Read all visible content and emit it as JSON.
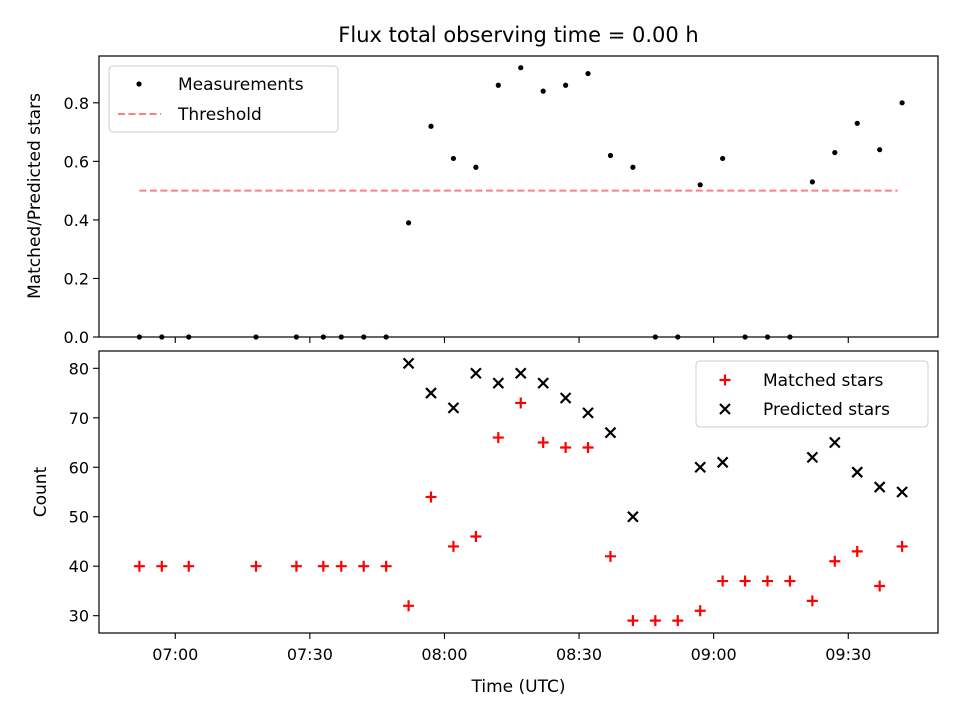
{
  "chart_data": [
    {
      "type": "scatter",
      "title": "Flux total observing time = 0.00 h",
      "xlabel": "",
      "ylabel": "Matched/Predicted stars",
      "ylim": [
        0,
        0.96
      ],
      "yticks": [
        0.0,
        0.2,
        0.4,
        0.6,
        0.8
      ],
      "ytick_labels": [
        "0.0",
        "0.2",
        "0.4",
        "0.6",
        "0.8"
      ],
      "legend": {
        "placement": "top-left",
        "entries": [
          "Measurements",
          "Threshold"
        ]
      },
      "series": [
        {
          "name": "Measurements",
          "kind": "points",
          "color": "#000000",
          "x": [
            "06:52",
            "06:57",
            "07:03",
            "07:18",
            "07:27",
            "07:33",
            "07:37",
            "07:42",
            "07:47",
            "07:52",
            "07:57",
            "08:02",
            "08:07",
            "08:12",
            "08:17",
            "08:22",
            "08:27",
            "08:32",
            "08:37",
            "08:42",
            "08:47",
            "08:52",
            "08:57",
            "09:02",
            "09:07",
            "09:12",
            "09:17",
            "09:22",
            "09:27",
            "09:32",
            "09:37",
            "09:42"
          ],
          "y": [
            0,
            0,
            0,
            0,
            0,
            0,
            0,
            0,
            0,
            0.39,
            0.72,
            0.61,
            0.58,
            0.86,
            0.92,
            0.84,
            0.86,
            0.9,
            0.62,
            0.58,
            0,
            0,
            0.52,
            0.61,
            0,
            0,
            0,
            0.53,
            0.63,
            0.73,
            0.64,
            0.8
          ]
        },
        {
          "name": "Threshold",
          "kind": "dashed-line",
          "color": "#ff7f7f",
          "x": [
            "06:52",
            "09:41"
          ],
          "y": [
            0.5,
            0.5
          ]
        }
      ]
    },
    {
      "type": "scatter",
      "title": "",
      "xlabel": "Time (UTC)",
      "ylabel": "Count",
      "ylim": [
        26.5,
        83.5
      ],
      "yticks": [
        30,
        40,
        50,
        60,
        70,
        80
      ],
      "ytick_labels": [
        "30",
        "40",
        "50",
        "60",
        "70",
        "80"
      ],
      "xlim": [
        "06:43",
        "09:50"
      ],
      "xticks": [
        "07:00",
        "07:30",
        "08:00",
        "08:30",
        "09:00",
        "09:30"
      ],
      "xtick_labels": [
        "07:00",
        "07:30",
        "08:00",
        "08:30",
        "09:00",
        "09:30"
      ],
      "legend": {
        "placement": "top-right",
        "entries": [
          "Matched stars",
          "Predicted stars"
        ]
      },
      "series": [
        {
          "name": "Matched stars",
          "marker": "plus",
          "color": "#ff0000",
          "x": [
            "06:52",
            "06:57",
            "07:03",
            "07:18",
            "07:27",
            "07:33",
            "07:37",
            "07:42",
            "07:47",
            "07:52",
            "07:57",
            "08:02",
            "08:07",
            "08:12",
            "08:17",
            "08:22",
            "08:27",
            "08:32",
            "08:37",
            "08:42",
            "08:47",
            "08:52",
            "08:57",
            "09:02",
            "09:07",
            "09:12",
            "09:17",
            "09:22",
            "09:27",
            "09:32",
            "09:37",
            "09:42"
          ],
          "y": [
            40,
            40,
            40,
            40,
            40,
            40,
            40,
            40,
            40,
            32,
            54,
            44,
            46,
            66,
            73,
            65,
            64,
            64,
            42,
            29,
            29,
            29,
            31,
            37,
            37,
            37,
            37,
            33,
            41,
            43,
            36,
            44
          ]
        },
        {
          "name": "Predicted stars",
          "marker": "x",
          "color": "#000000",
          "x": [
            "07:52",
            "07:57",
            "08:02",
            "08:07",
            "08:12",
            "08:17",
            "08:22",
            "08:27",
            "08:32",
            "08:37",
            "08:42",
            "08:57",
            "09:02",
            "09:22",
            "09:27",
            "09:32",
            "09:37",
            "09:42"
          ],
          "y": [
            81,
            75,
            72,
            79,
            77,
            79,
            77,
            74,
            71,
            67,
            50,
            60,
            61,
            62,
            65,
            59,
            56,
            55
          ]
        }
      ]
    }
  ]
}
